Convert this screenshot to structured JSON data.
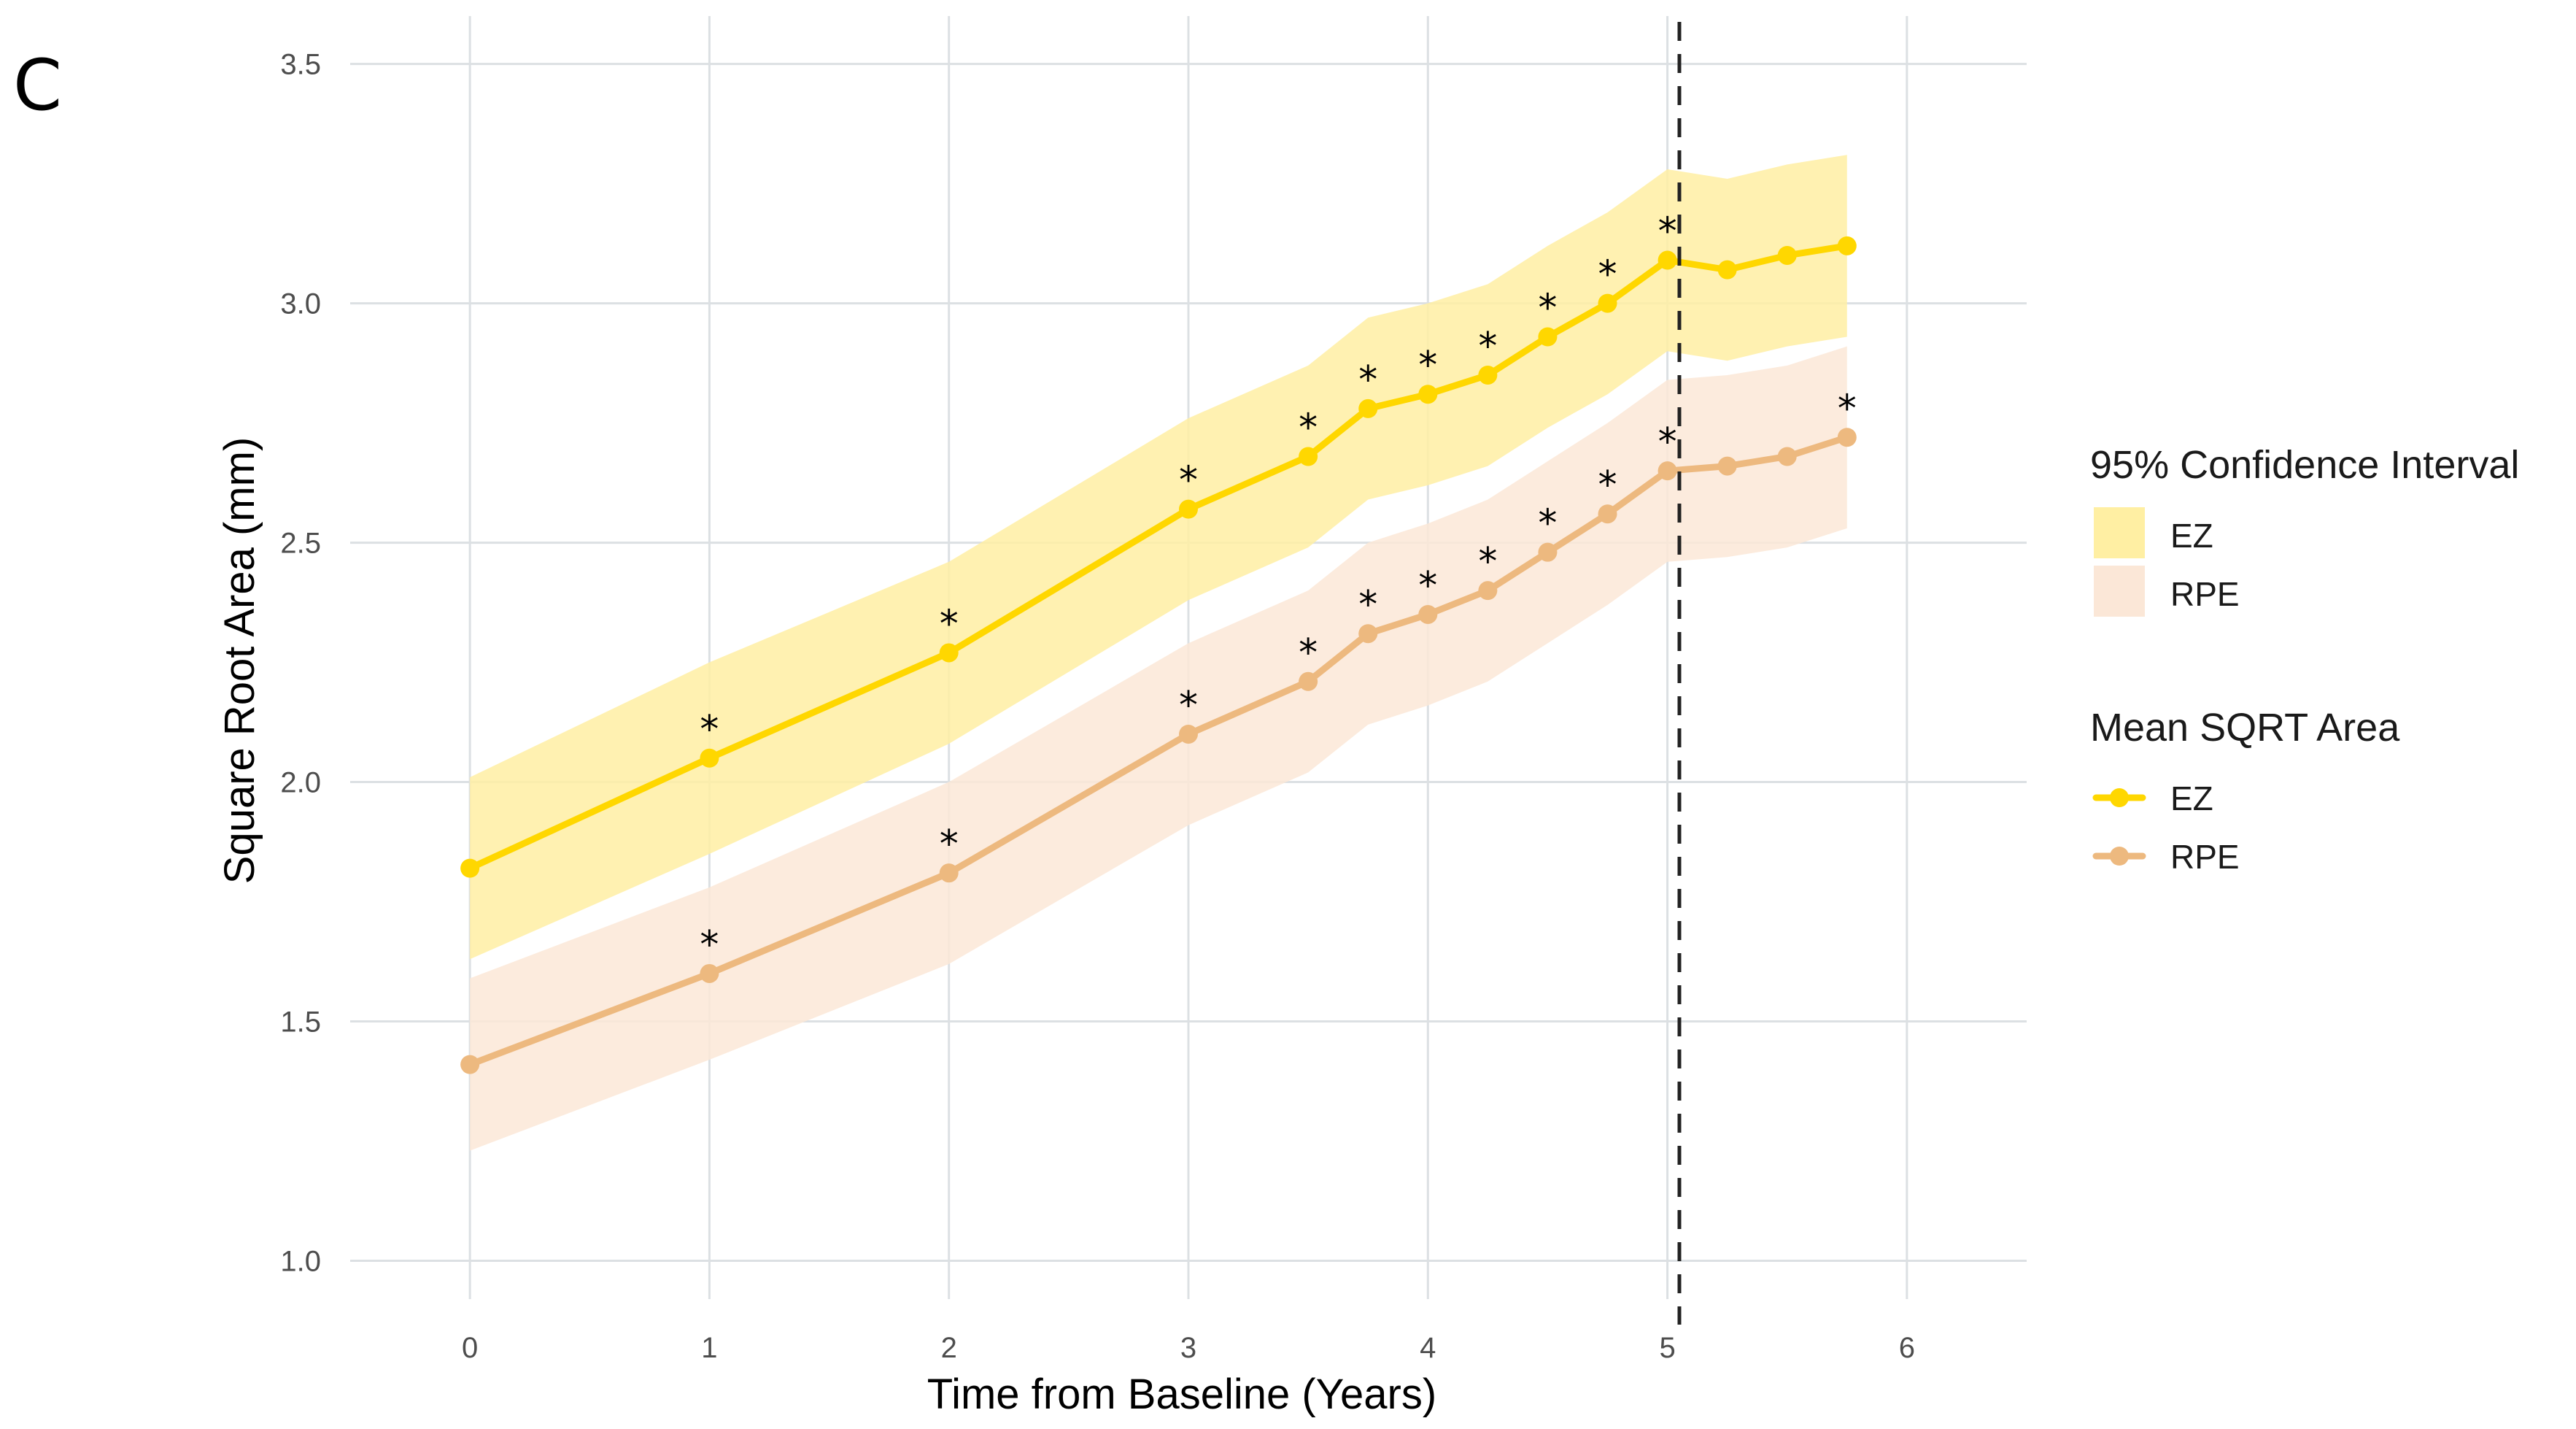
{
  "panel_label": "C",
  "colors": {
    "ez_line": "#FFD700",
    "ez_band": "#FFEFA3",
    "rpe_line": "#EDB97F",
    "rpe_band": "#FBE7D7",
    "grid": "#DCE0E3",
    "marker_line": "#222222",
    "star": "#000000"
  },
  "chart_data": {
    "type": "line",
    "title": "",
    "xlabel": "Time from Baseline (Years)",
    "ylabel": "Square Root Area (mm)",
    "xlim": [
      -0.5,
      6.5
    ],
    "ylim": [
      0.92,
      3.6
    ],
    "xticks": [
      0,
      1,
      2,
      3,
      4,
      5,
      6
    ],
    "xtick_labels": [
      "0",
      "1",
      "2",
      "3",
      "4",
      "5",
      "6"
    ],
    "yticks": [
      1.0,
      1.5,
      2.0,
      2.5,
      3.0,
      3.5
    ],
    "ytick_labels": [
      "1.0",
      "1.5",
      "2.0",
      "2.5",
      "3.0",
      "3.5"
    ],
    "grid": true,
    "vertical_reference_line_x": 5.05,
    "significance_marker": "*",
    "series": [
      {
        "name": "EZ",
        "x": [
          0,
          1,
          2,
          3,
          3.5,
          3.75,
          4,
          4.25,
          4.5,
          4.75,
          5,
          5.25,
          5.5,
          5.75
        ],
        "values": [
          1.82,
          2.05,
          2.27,
          2.57,
          2.68,
          2.78,
          2.81,
          2.85,
          2.93,
          3.0,
          3.09,
          3.07,
          3.1,
          3.12
        ],
        "ci_lower": [
          1.63,
          1.85,
          2.08,
          2.38,
          2.49,
          2.59,
          2.62,
          2.66,
          2.74,
          2.81,
          2.9,
          2.88,
          2.91,
          2.93
        ],
        "ci_upper": [
          2.01,
          2.25,
          2.46,
          2.76,
          2.87,
          2.97,
          3.0,
          3.04,
          3.12,
          3.19,
          3.28,
          3.26,
          3.29,
          3.31
        ],
        "significant": [
          false,
          true,
          true,
          true,
          true,
          true,
          true,
          true,
          true,
          true,
          true,
          false,
          false,
          false
        ]
      },
      {
        "name": "RPE",
        "x": [
          0,
          1,
          2,
          3,
          3.5,
          3.75,
          4,
          4.25,
          4.5,
          4.75,
          5,
          5.25,
          5.5,
          5.75
        ],
        "values": [
          1.41,
          1.6,
          1.81,
          2.1,
          2.21,
          2.31,
          2.35,
          2.4,
          2.48,
          2.56,
          2.65,
          2.66,
          2.68,
          2.72
        ],
        "ci_lower": [
          1.23,
          1.42,
          1.62,
          1.91,
          2.02,
          2.12,
          2.16,
          2.21,
          2.29,
          2.37,
          2.46,
          2.47,
          2.49,
          2.53
        ],
        "ci_upper": [
          1.59,
          1.78,
          2.0,
          2.29,
          2.4,
          2.5,
          2.54,
          2.59,
          2.67,
          2.75,
          2.84,
          2.85,
          2.87,
          2.91
        ],
        "significant": [
          false,
          true,
          true,
          true,
          true,
          true,
          true,
          true,
          true,
          true,
          true,
          false,
          false,
          true
        ]
      }
    ],
    "legend": {
      "position": "right",
      "ci_title": "95% Confidence Interval",
      "ci_items": [
        "EZ",
        "RPE"
      ],
      "mean_title": "Mean SQRT Area",
      "mean_items": [
        "EZ",
        "RPE"
      ]
    }
  }
}
